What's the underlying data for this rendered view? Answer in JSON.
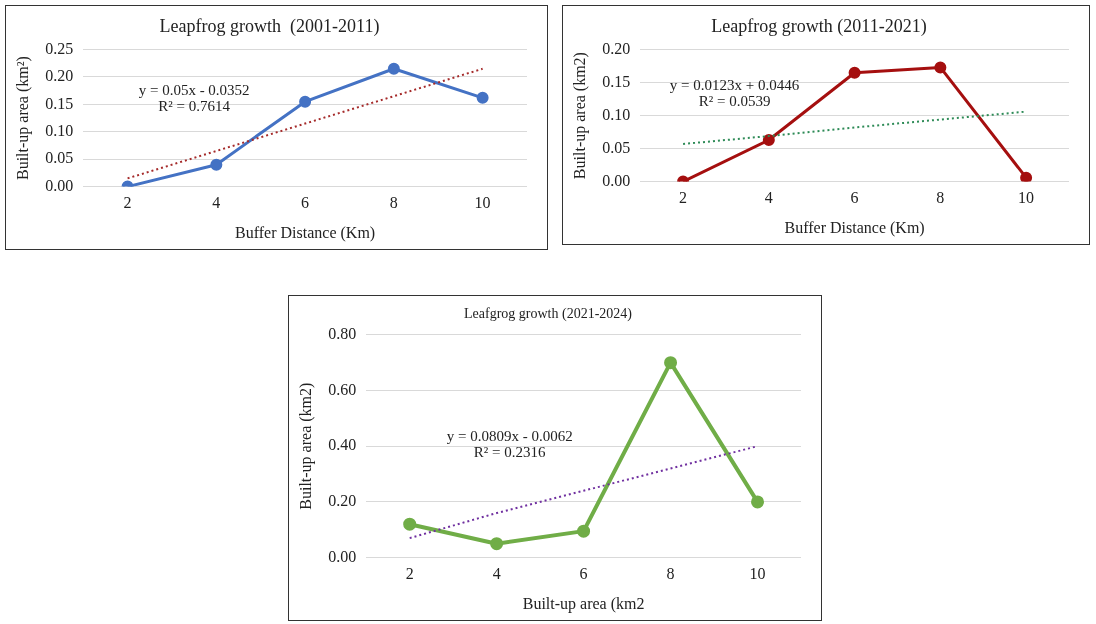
{
  "chart_data": [
    {
      "type": "line",
      "title": "Leapfrog growth  (2001-2011)",
      "xlabel": "Buffer Distance (Km)",
      "ylabel": "Built-up area (km²)",
      "categories": [
        "2",
        "4",
        "6",
        "8",
        "10"
      ],
      "series": [
        {
          "color": "#4472c4",
          "values": [
            0,
            0.04,
            0.155,
            0.215,
            0.162
          ],
          "marker": "circle",
          "line_style": "solid"
        },
        {
          "type": "line",
          "color": "#a52a2a",
          "values": [
            0.015,
            0.065,
            0.115,
            0.165,
            0.215
          ],
          "marker": "none",
          "line_style": "dotted"
        }
      ],
      "ylim": [
        0,
        0.25
      ],
      "yticks": [
        {
          "value": 0,
          "label": "0.00"
        },
        {
          "value": 0.05,
          "label": "0.05"
        },
        {
          "value": 0.1,
          "label": "0.10"
        },
        {
          "value": 0.15,
          "label": "0.15"
        },
        {
          "value": 0.2,
          "label": "0.20"
        },
        {
          "value": 0.25,
          "label": "0.25"
        }
      ],
      "grid": "y",
      "legend": false,
      "annotations": [
        "y = 0.05x - 0.0352",
        "R² = 0.7614"
      ]
    },
    {
      "type": "line",
      "title": "Leapfrog growth (2011-2021)",
      "xlabel": "Buffer Distance (Km)",
      "ylabel": "Built-up area (km2)",
      "categories": [
        "2",
        "4",
        "6",
        "8",
        "10"
      ],
      "series": [
        {
          "color": "#a50f0f",
          "values": [
            0,
            0.063,
            0.165,
            0.173,
            0.006
          ],
          "marker": "circle",
          "line_style": "solid"
        },
        {
          "type": "line",
          "color": "#2e8b57",
          "values": [
            0.057,
            0.069,
            0.082,
            0.094,
            0.106
          ],
          "marker": "none",
          "line_style": "dotted"
        }
      ],
      "ylim": [
        0,
        0.2
      ],
      "yticks": [
        {
          "value": 0,
          "label": "0.00"
        },
        {
          "value": 0.05,
          "label": "0.05"
        },
        {
          "value": 0.1,
          "label": "0.10"
        },
        {
          "value": 0.15,
          "label": "0.15"
        },
        {
          "value": 0.2,
          "label": "0.20"
        }
      ],
      "grid": "y",
      "legend": false,
      "annotations": [
        "y = 0.0123x + 0.0446",
        "R² = 0.0539"
      ]
    },
    {
      "type": "line",
      "title": "Leafgrog growth (2021-2024)",
      "xlabel": "Built-up area (km2",
      "ylabel": "Built-up area (km2)",
      "categories": [
        "2",
        "4",
        "6",
        "8",
        "10"
      ],
      "series": [
        {
          "color": "#70ad47",
          "values": [
            0.12,
            0.05,
            0.095,
            0.7,
            0.2
          ],
          "marker": "circle",
          "line_style": "solid"
        },
        {
          "type": "line",
          "color": "#7030a0",
          "values": [
            0.07,
            0.16,
            0.24,
            0.32,
            0.4
          ],
          "marker": "none",
          "line_style": "dotted"
        }
      ],
      "ylim": [
        0,
        0.8
      ],
      "yticks": [
        {
          "value": 0,
          "label": "0.00"
        },
        {
          "value": 0.2,
          "label": "0.20"
        },
        {
          "value": 0.4,
          "label": "0.40"
        },
        {
          "value": 0.6,
          "label": "0.60"
        },
        {
          "value": 0.8,
          "label": "0.80"
        }
      ],
      "grid": "y",
      "legend": false,
      "annotations": [
        "y = 0.0809x - 0.0062",
        "R² = 0.2316"
      ]
    }
  ]
}
